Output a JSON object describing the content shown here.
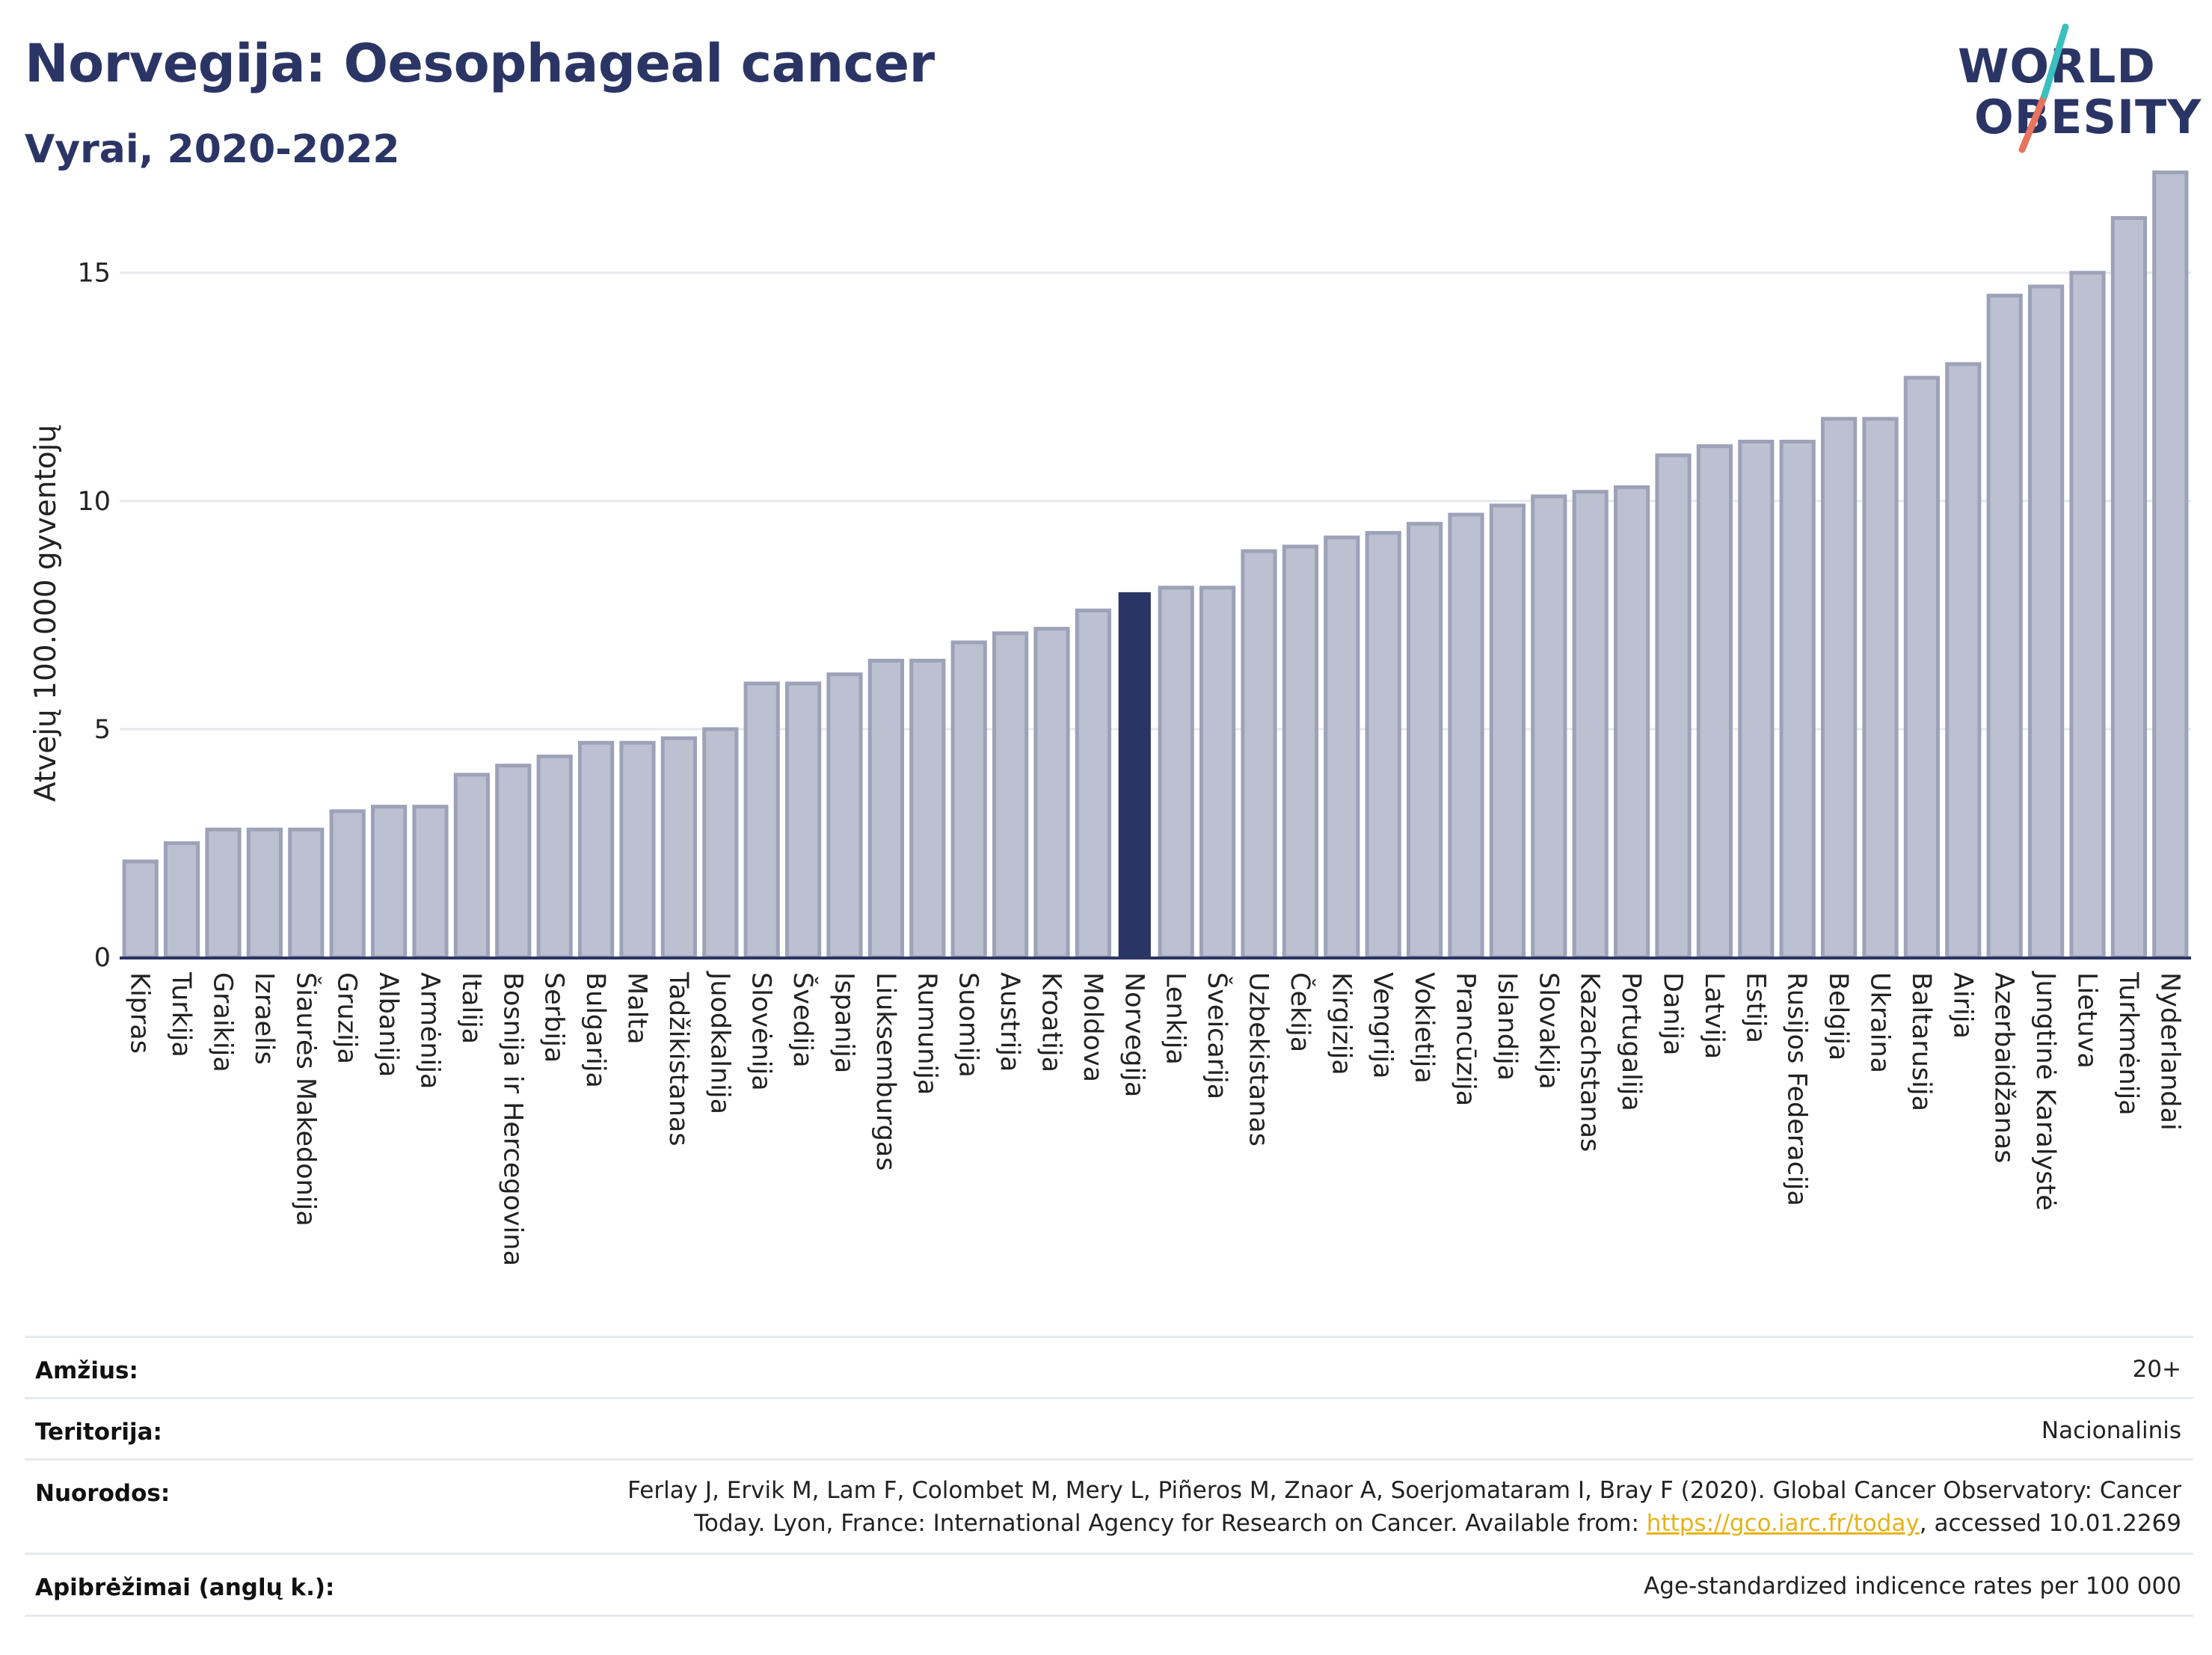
{
  "title": "Norvegija: Oesophageal cancer",
  "subtitle": "Vyrai, 2020-2022",
  "logo": {
    "line1": "WORLD",
    "line2": "OBESITY"
  },
  "colors": {
    "title": "#2b3565",
    "bar_default": "#bcc0d0",
    "bar_default_stroke": "#9da2b8",
    "bar_highlight": "#2b3565",
    "gridline": "#e6e9ee",
    "axis": "#2b3565",
    "logo_slash_top": "#3bbfbf",
    "logo_slash_bottom": "#e8735e",
    "link": "#e6b218"
  },
  "chart_data": {
    "type": "bar",
    "ylabel": "Atvejų 100.000 gyventojų",
    "ylim": [
      0,
      17.7
    ],
    "yticks": [
      0,
      5,
      10,
      15
    ],
    "grid": true,
    "highlight": "Norvegija",
    "categories": [
      "Kipras",
      "Turkija",
      "Graikija",
      "Izraelis",
      "Šiaurės Makedonija",
      "Gruzija",
      "Albanija",
      "Armėnija",
      "Italija",
      "Bosnija ir Hercegovina",
      "Serbija",
      "Bulgarija",
      "Malta",
      "Tadžikistanas",
      "Juodkalnija",
      "Slovėnija",
      "Švedija",
      "Ispanija",
      "Liuksemburgas",
      "Rumunija",
      "Suomija",
      "Austrija",
      "Kroatija",
      "Moldova",
      "Norvegija",
      "Lenkija",
      "Šveicarija",
      "Uzbekistanas",
      "Čekija",
      "Kirgizija",
      "Vengrija",
      "Vokietija",
      "Prancūzija",
      "Islandija",
      "Slovakija",
      "Kazachstanas",
      "Portugalija",
      "Danija",
      "Latvija",
      "Estija",
      "Rusijos Federacija",
      "Belgija",
      "Ukraina",
      "Baltarusija",
      "Airija",
      "Azerbaidžanas",
      "Jungtinė Karalystė",
      "Lietuva",
      "Turkmėnija",
      "Nyderlandai"
    ],
    "values": [
      2.1,
      2.5,
      2.8,
      2.8,
      2.8,
      3.2,
      3.3,
      3.3,
      4.0,
      4.2,
      4.4,
      4.7,
      4.7,
      4.8,
      5.0,
      6.0,
      6.0,
      6.2,
      6.5,
      6.5,
      6.9,
      7.1,
      7.2,
      7.6,
      8.0,
      8.1,
      8.1,
      8.9,
      9.0,
      9.2,
      9.3,
      9.5,
      9.7,
      9.9,
      10.1,
      10.2,
      10.3,
      11.0,
      11.2,
      11.3,
      11.3,
      11.8,
      11.8,
      12.7,
      13.0,
      14.5,
      14.7,
      15.0,
      16.2,
      17.2
    ]
  },
  "info": {
    "age_label": "Amžius:",
    "age_value": "20+",
    "territory_label": "Teritorija:",
    "territory_value": "Nacionalinis",
    "refs_label": "Nuorodos:",
    "refs_line1": "Ferlay J, Ervik M, Lam F, Colombet M, Mery L, Piñeros M, Znaor A, Soerjomataram I, Bray F (2020). Global Cancer Observatory: Cancer",
    "refs_line2_pre": "Today. Lyon, France: International Agency for Research on Cancer. Available from: ",
    "refs_link": "https://gco.iarc.fr/today",
    "refs_line2_post": ", accessed 10.01.2269",
    "defs_label": "Apibrėžimai (anglų k.):",
    "defs_value": "Age-standardized indicence rates per 100 000"
  }
}
